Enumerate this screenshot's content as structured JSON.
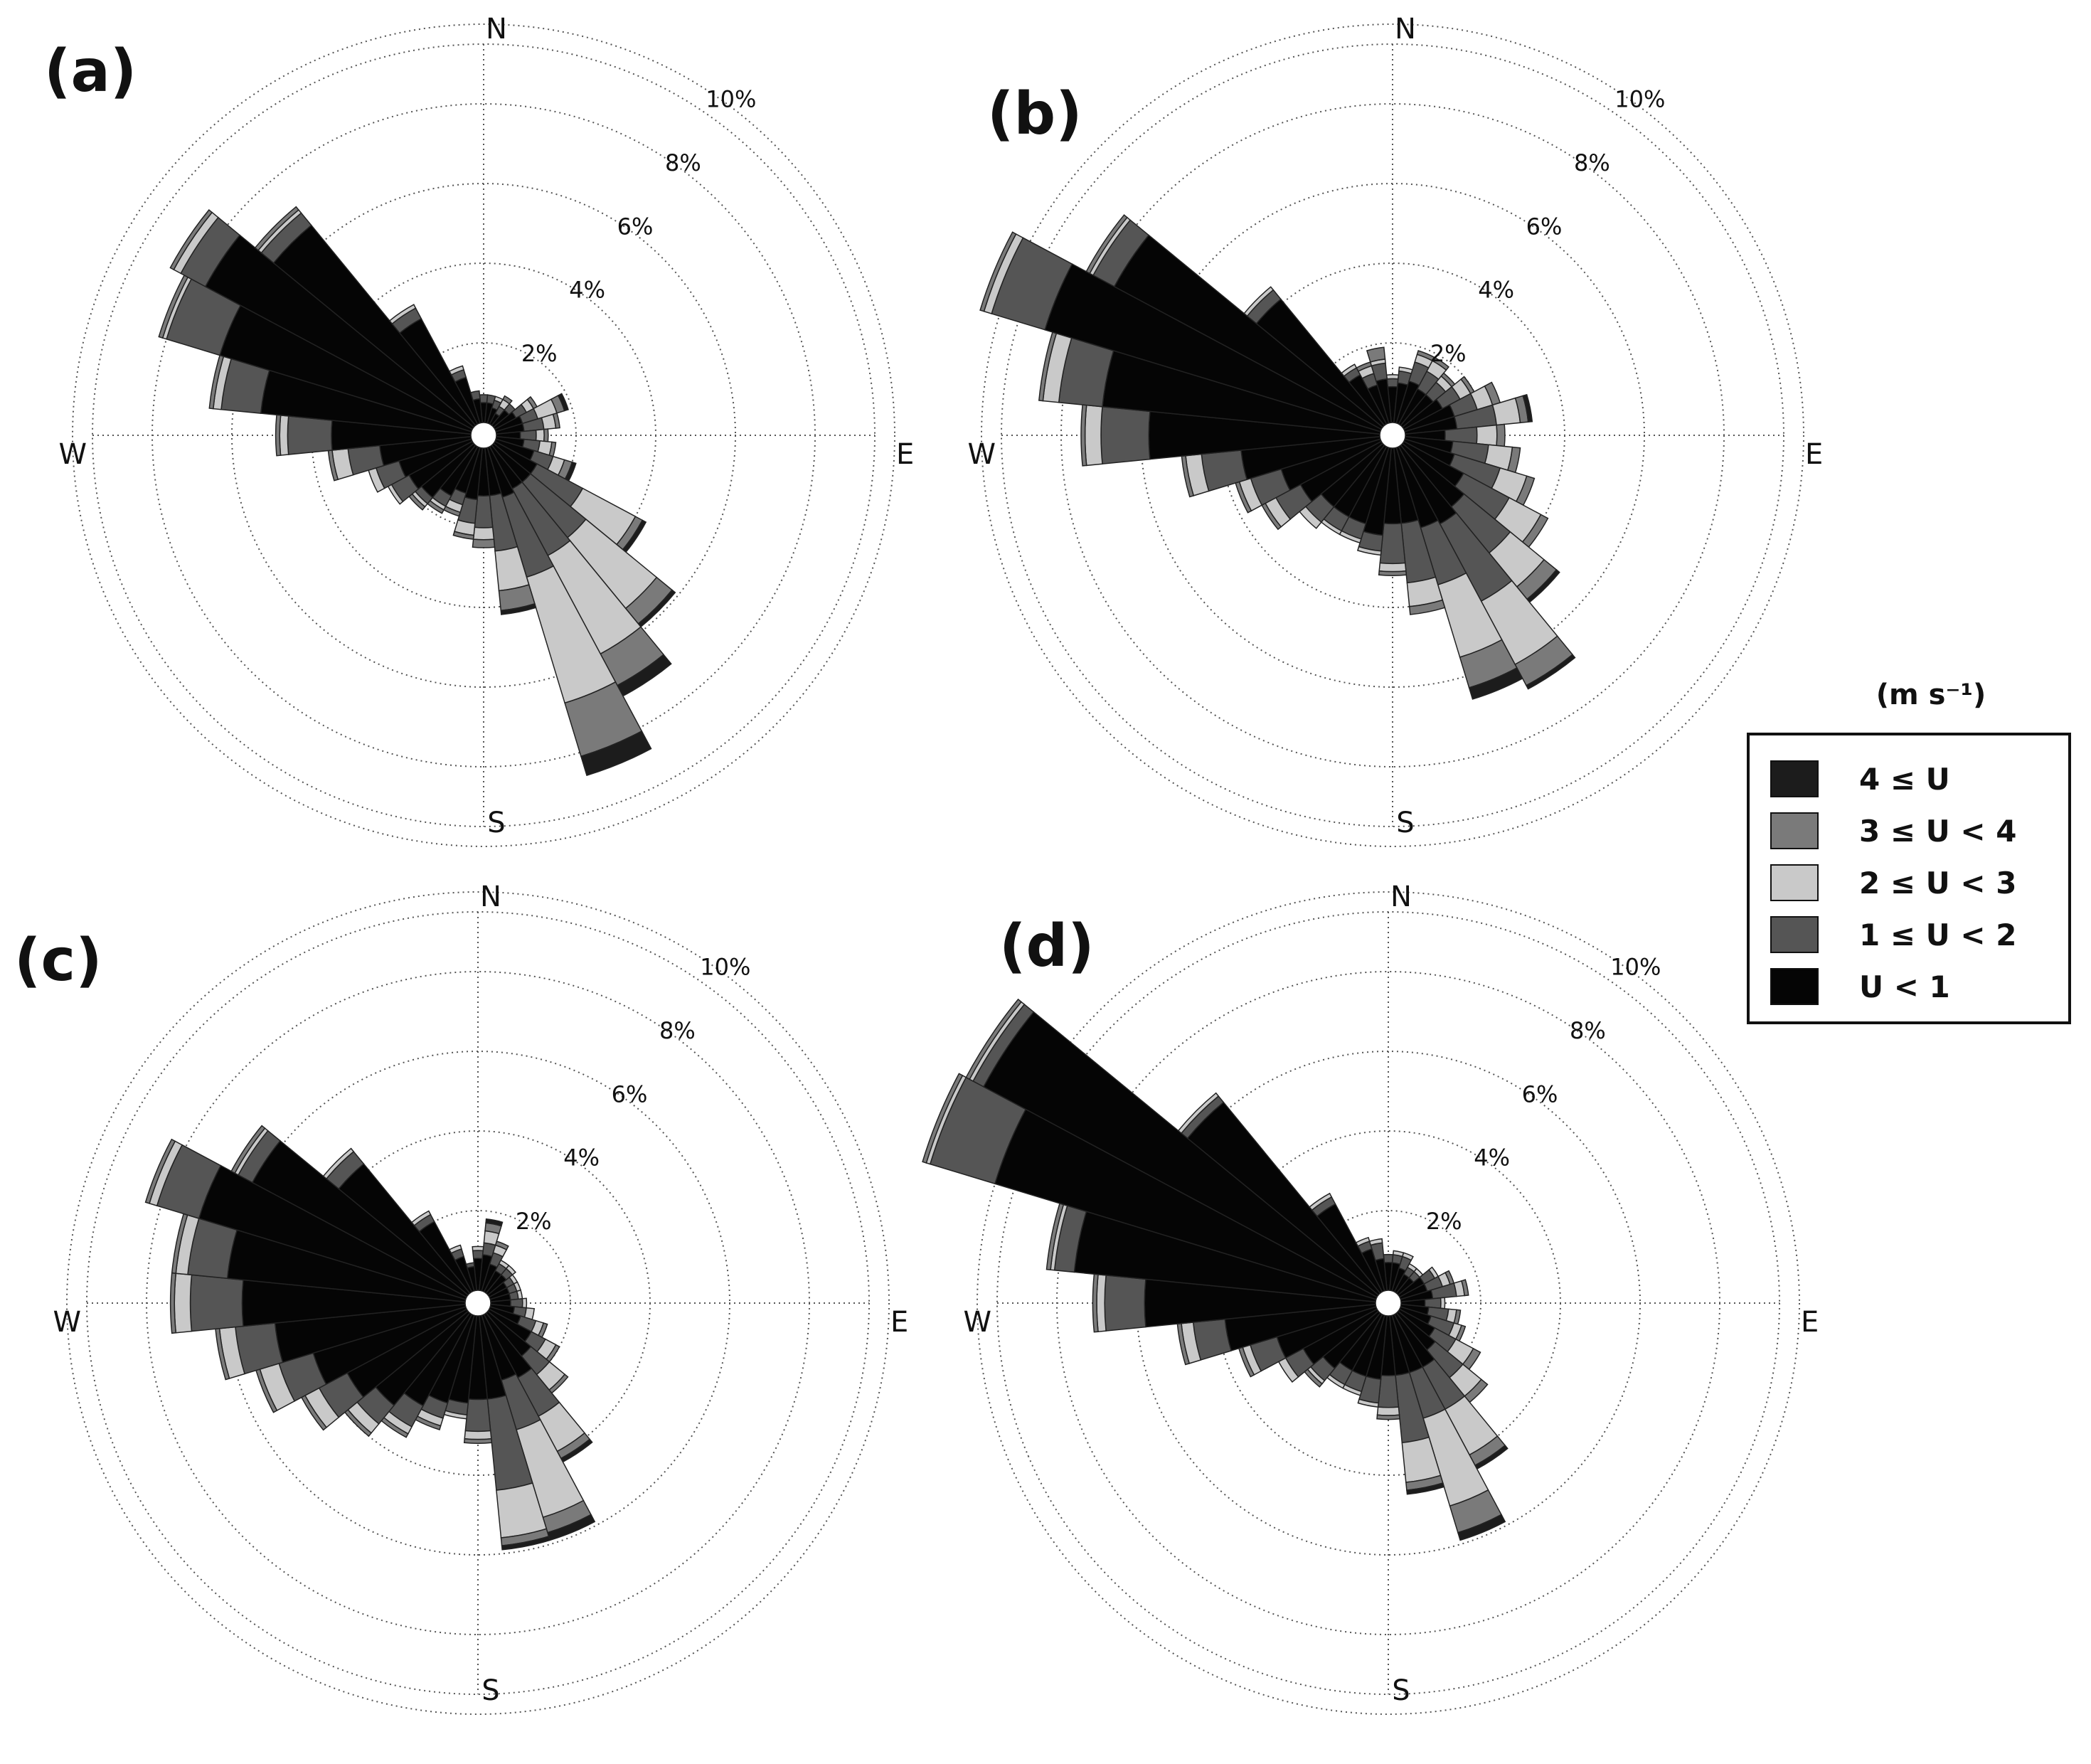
{
  "chart_data": [
    {
      "panel_label": "(a)",
      "type": "windrose",
      "directions": [
        "N",
        "E",
        "S",
        "W"
      ],
      "rings": [
        2,
        4,
        6,
        8,
        10
      ],
      "ring_labels": [
        "2%",
        "4%",
        "6%",
        "8%",
        "10%"
      ],
      "bins": [
        [
          0.5,
          0.2,
          0,
          0,
          0
        ],
        [
          0.5,
          0.2,
          0,
          0,
          0
        ],
        [
          0.4,
          0.2,
          0.1,
          0,
          0
        ],
        [
          0.3,
          0.2,
          0.2,
          0.1,
          0
        ],
        [
          0.5,
          0.2,
          0,
          0,
          0
        ],
        [
          0.6,
          0.3,
          0.2,
          0.1,
          0
        ],
        [
          0.7,
          0.4,
          0.5,
          0.2,
          0.1
        ],
        [
          0.7,
          0.5,
          0.3,
          0.1,
          0
        ],
        [
          0.6,
          0.4,
          0.2,
          0.1,
          0
        ],
        [
          0.7,
          0.4,
          0.3,
          0.1,
          0
        ],
        [
          1.0,
          0.5,
          0.3,
          0.2,
          0.1
        ],
        [
          1.2,
          1.3,
          1.5,
          0.2,
          0.1
        ],
        [
          1.2,
          1.8,
          2.3,
          0.5,
          0.1
        ],
        [
          1.2,
          1.9,
          2.8,
          0.9,
          0.3
        ],
        [
          1.3,
          2.1,
          3.3,
          1.4,
          0.5
        ],
        [
          1.2,
          1.4,
          1.0,
          0.5,
          0.1
        ],
        [
          1.2,
          0.8,
          0.3,
          0.2,
          0
        ],
        [
          1.3,
          0.6,
          0.3,
          0.1,
          0
        ],
        [
          1.2,
          0.3,
          0.2,
          0.1,
          0
        ],
        [
          1.4,
          0.3,
          0.1,
          0.1,
          0
        ],
        [
          1.7,
          0.2,
          0.1,
          0.1,
          0
        ],
        [
          1.8,
          0.5,
          0.1,
          0,
          0
        ],
        [
          1.9,
          0.6,
          0.2,
          0,
          0
        ],
        [
          2.3,
          0.8,
          0.4,
          0.1,
          0
        ],
        [
          3.5,
          1.1,
          0.2,
          0.1,
          0
        ],
        [
          5.3,
          1.0,
          0.2,
          0.1,
          0
        ],
        [
          6.6,
          1.4,
          0.1,
          0.1,
          0
        ],
        [
          7.6,
          0.7,
          0.2,
          0.1,
          0
        ],
        [
          6.5,
          0.4,
          0.1,
          0.1,
          0
        ],
        [
          3.0,
          0.3,
          0.1,
          0,
          0
        ],
        [
          1.2,
          0.2,
          0.1,
          0,
          0
        ],
        [
          0.6,
          0.2,
          0,
          0,
          0
        ]
      ]
    },
    {
      "panel_label": "(b)",
      "type": "windrose",
      "directions": [
        "N",
        "E",
        "S",
        "W"
      ],
      "rings": [
        2,
        4,
        6,
        8,
        10
      ],
      "ring_labels": [
        "2%",
        "4%",
        "6%",
        "8%",
        "10%"
      ],
      "bins": [
        [
          0.9,
          0.2,
          0.1,
          0,
          0
        ],
        [
          1.0,
          0.3,
          0.1,
          0,
          0
        ],
        [
          1.1,
          0.5,
          0.2,
          0.1,
          0
        ],
        [
          1.0,
          0.5,
          0.3,
          0.1,
          0
        ],
        [
          1.0,
          0.4,
          0.2,
          0.1,
          0
        ],
        [
          1.1,
          0.5,
          0.3,
          0.1,
          0
        ],
        [
          1.3,
          0.6,
          0.4,
          0.2,
          0
        ],
        [
          1.3,
          1.0,
          0.6,
          0.2,
          0.1
        ],
        [
          1.0,
          0.8,
          0.5,
          0.2,
          0
        ],
        [
          1.2,
          0.9,
          0.6,
          0.2,
          0
        ],
        [
          1.3,
          1.2,
          0.7,
          0.2,
          0
        ],
        [
          1.7,
          1.3,
          0.9,
          0.2,
          0
        ],
        [
          2.0,
          1.5,
          1.1,
          0.4,
          0.1
        ],
        [
          2.2,
          2.2,
          1.8,
          0.6,
          0.1
        ],
        [
          2.1,
          1.5,
          1.9,
          0.8,
          0.3
        ],
        [
          1.9,
          1.5,
          0.6,
          0.2,
          0
        ],
        [
          1.9,
          1.0,
          0.2,
          0.1,
          0
        ],
        [
          2.2,
          0.4,
          0.1,
          0,
          0
        ],
        [
          2.0,
          0.4,
          0.1,
          0,
          0
        ],
        [
          2.0,
          0.4,
          0.1,
          0,
          0
        ],
        [
          2.0,
          0.5,
          0.2,
          0,
          0
        ],
        [
          2.3,
          0.7,
          0.3,
          0.1,
          0
        ],
        [
          2.6,
          0.8,
          0.3,
          0.1,
          0
        ],
        [
          3.5,
          1.0,
          0.4,
          0.1,
          0
        ],
        [
          5.8,
          1.2,
          0.4,
          0.1,
          0
        ],
        [
          7.0,
          1.1,
          0.4,
          0.1,
          0
        ],
        [
          8.8,
          1.4,
          0.2,
          0.1,
          0
        ],
        [
          7.6,
          0.6,
          0.1,
          0.1,
          0
        ],
        [
          4.1,
          0.3,
          0.1,
          0,
          0
        ],
        [
          1.4,
          0.2,
          0.1,
          0,
          0
        ],
        [
          1.0,
          0.3,
          0.2,
          0.1,
          0
        ],
        [
          1.1,
          0.4,
          0.1,
          0.3,
          0
        ]
      ]
    },
    {
      "panel_label": "(c)",
      "type": "windrose",
      "directions": [
        "N",
        "E",
        "S",
        "W"
      ],
      "rings": [
        2,
        4,
        6,
        8,
        10
      ],
      "ring_labels": [
        "2%",
        "4%",
        "6%",
        "8%",
        "10%"
      ],
      "bins": [
        [
          0.8,
          0.2,
          0.1,
          0,
          0
        ],
        [
          0.9,
          0.3,
          0.3,
          0.2,
          0.1
        ],
        [
          0.7,
          0.3,
          0.2,
          0.1,
          0
        ],
        [
          0.6,
          0.2,
          0.1,
          0,
          0
        ],
        [
          0.6,
          0.2,
          0.1,
          0,
          0
        ],
        [
          0.5,
          0.2,
          0.1,
          0,
          0
        ],
        [
          0.5,
          0.2,
          0.1,
          0,
          0
        ],
        [
          0.5,
          0.2,
          0.1,
          0,
          0
        ],
        [
          0.5,
          0.3,
          0.1,
          0,
          0
        ],
        [
          0.6,
          0.3,
          0.2,
          0,
          0
        ],
        [
          0.8,
          0.4,
          0.2,
          0.1,
          0
        ],
        [
          1.2,
          0.4,
          0.3,
          0.1,
          0
        ],
        [
          1.4,
          0.6,
          0.5,
          0.1,
          0
        ],
        [
          1.8,
          1.1,
          1.0,
          0.2,
          0.1
        ],
        [
          1.7,
          1.3,
          2.3,
          0.4,
          0.2
        ],
        [
          2.1,
          2.3,
          1.2,
          0.2,
          0.1
        ],
        [
          2.1,
          0.8,
          0.2,
          0.1,
          0
        ],
        [
          2.2,
          0.3,
          0.1,
          0,
          0
        ],
        [
          2.3,
          0.4,
          0.2,
          0.1,
          0
        ],
        [
          2.6,
          0.6,
          0.2,
          0.1,
          0
        ],
        [
          3.0,
          0.6,
          0.3,
          0.1,
          0
        ],
        [
          3.4,
          0.8,
          0.4,
          0.1,
          0
        ],
        [
          4.0,
          0.9,
          0.5,
          0.1,
          0
        ],
        [
          4.8,
          1.0,
          0.4,
          0.1,
          0
        ],
        [
          5.6,
          1.3,
          0.4,
          0.1,
          0
        ],
        [
          6.0,
          1.0,
          0.3,
          0.1,
          0
        ],
        [
          7.0,
          1.1,
          0.2,
          0.1,
          0
        ],
        [
          6.1,
          0.4,
          0.1,
          0.1,
          0
        ],
        [
          4.2,
          0.4,
          0.1,
          0,
          0
        ],
        [
          2.0,
          0.2,
          0.1,
          0,
          0
        ],
        [
          0.9,
          0.2,
          0.1,
          0,
          0
        ],
        [
          0.6,
          0.1,
          0,
          0,
          0
        ]
      ]
    },
    {
      "panel_label": "(d)",
      "type": "windrose",
      "directions": [
        "N",
        "E",
        "S",
        "W"
      ],
      "rings": [
        2,
        4,
        6,
        8,
        10
      ],
      "ring_labels": [
        "2%",
        "4%",
        "6%",
        "8%",
        "10%"
      ],
      "bins": [
        [
          0.7,
          0.2,
          0,
          0,
          0
        ],
        [
          0.7,
          0.2,
          0.1,
          0,
          0
        ],
        [
          0.6,
          0.3,
          0.1,
          0,
          0
        ],
        [
          0.5,
          0.2,
          0.1,
          0,
          0
        ],
        [
          0.5,
          0.2,
          0.1,
          0,
          0
        ],
        [
          0.7,
          0.3,
          0.1,
          0,
          0
        ],
        [
          0.7,
          0.4,
          0.2,
          0.1,
          0
        ],
        [
          0.8,
          0.6,
          0.2,
          0.1,
          0
        ],
        [
          0.6,
          0.4,
          0.1,
          0,
          0
        ],
        [
          0.7,
          0.5,
          0.2,
          0.1,
          0
        ],
        [
          0.8,
          0.6,
          0.2,
          0.1,
          0
        ],
        [
          1.0,
          0.6,
          0.5,
          0.2,
          0
        ],
        [
          1.2,
          0.9,
          0.6,
          0.2,
          0
        ],
        [
          1.5,
          1.2,
          1.3,
          0.3,
          0.1
        ],
        [
          1.5,
          1.2,
          2.3,
          0.7,
          0.2
        ],
        [
          1.5,
          1.7,
          1.0,
          0.2,
          0.1
        ],
        [
          1.5,
          0.8,
          0.2,
          0.1,
          0
        ],
        [
          1.6,
          0.6,
          0.1,
          0,
          0
        ],
        [
          1.6,
          0.4,
          0.1,
          0,
          0
        ],
        [
          1.6,
          0.4,
          0.1,
          0,
          0
        ],
        [
          1.8,
          0.4,
          0.1,
          0.1,
          0
        ],
        [
          2.1,
          0.5,
          0.2,
          0,
          0
        ],
        [
          2.6,
          0.7,
          0.2,
          0.1,
          0
        ],
        [
          3.8,
          0.8,
          0.3,
          0.1,
          0
        ],
        [
          5.8,
          1.0,
          0.2,
          0.1,
          0
        ],
        [
          7.6,
          0.5,
          0.1,
          0.1,
          0
        ],
        [
          10.0,
          1.7,
          0.1,
          0.1,
          0
        ],
        [
          11.2,
          0.3,
          0.1,
          0.1,
          0
        ],
        [
          6.2,
          0.2,
          0.1,
          0,
          0
        ],
        [
          2.5,
          0.2,
          0.1,
          0,
          0
        ],
        [
          1.1,
          0.2,
          0.1,
          0,
          0
        ],
        [
          0.8,
          0.4,
          0.1,
          0,
          0
        ]
      ]
    }
  ],
  "legend": {
    "title": "(m s⁻¹)",
    "entries": [
      {
        "label": "4 ≤ U",
        "color": "#1c1c1c"
      },
      {
        "label": "3 ≤ U < 4",
        "color": "#7a7a7a"
      },
      {
        "label": "2 ≤ U < 3",
        "color": "#c9c9c9"
      },
      {
        "label": "1 ≤ U < 2",
        "color": "#555555"
      },
      {
        "label": "U < 1",
        "color": "#050505"
      }
    ]
  },
  "bin_colors": [
    "#050505",
    "#555555",
    "#c9c9c9",
    "#7a7a7a",
    "#1c1c1c"
  ]
}
